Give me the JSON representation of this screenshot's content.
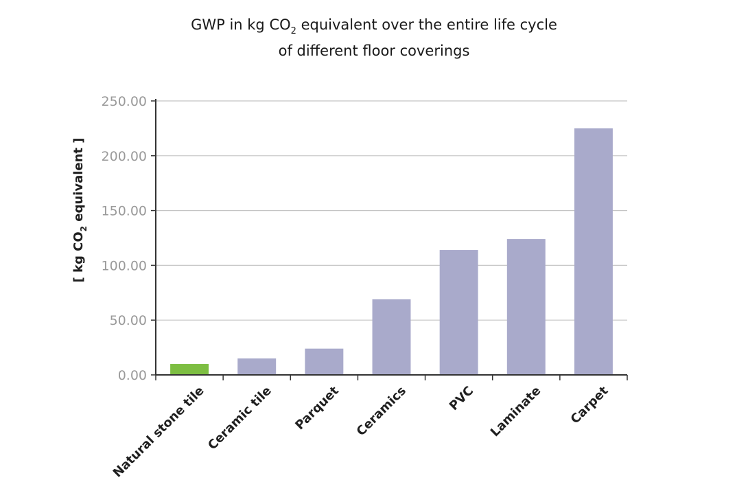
{
  "chart_data": {
    "type": "bar",
    "title_line1_pre": "GWP in kg CO",
    "title_line1_sub": "2",
    "title_line1_post": " equivalent over the entire life cycle",
    "title_line2": "of different floor coverings",
    "ylabel_pre": "[ kg CO",
    "ylabel_sub": "2",
    "ylabel_post": " equivalent ]",
    "xlabel": "",
    "ylim": [
      0,
      250
    ],
    "yticks": [
      "0.00",
      "50.00",
      "100.00",
      "150.00",
      "200.00",
      "250.00"
    ],
    "grid": true,
    "categories": [
      "Natural stone tile",
      "Ceramic tile",
      "Parquet",
      "Ceramics",
      "PVC",
      "Laminate",
      "Carpet"
    ],
    "values": [
      10,
      15,
      24,
      69,
      114,
      124,
      225
    ],
    "colors": [
      "#7dbe42",
      "#a9aacb",
      "#a9aacb",
      "#a9aacb",
      "#a9aacb",
      "#a9aacb",
      "#a9aacb"
    ]
  }
}
